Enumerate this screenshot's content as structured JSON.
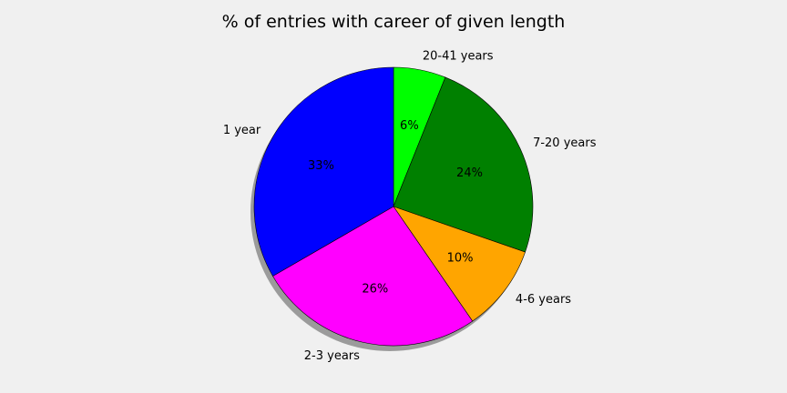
{
  "chart_data": {
    "type": "pie",
    "title": "% of entries with career of given length",
    "labels": [
      "20-41 years",
      "7-20 years",
      "4-6 years",
      "2-3 years",
      "1 year"
    ],
    "values": [
      6,
      24,
      10,
      26,
      33
    ],
    "pct_labels": [
      "6%",
      "24%",
      "10%",
      "26%",
      "33%"
    ],
    "colors": [
      "#00ff00",
      "#008000",
      "#ffa500",
      "#ff00ff",
      "#0000ff"
    ],
    "shadow": true,
    "start_angle_deg": 90,
    "direction": "clockwise"
  }
}
